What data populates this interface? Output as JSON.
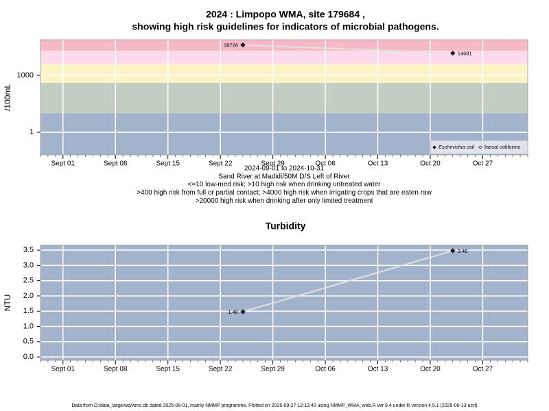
{
  "chart_data": [
    {
      "type": "line",
      "title": [
        "2024 : Limpopo WMA, site 179684 ,",
        "showing high risk guidelines for indicators of microbial pathogens."
      ],
      "ylabel": "/100mL",
      "log_scale": true,
      "x": [
        "2024-09-25",
        "2024-10-23"
      ],
      "xlim": [
        "2024-08-29",
        "2024-11-02"
      ],
      "xticks": [
        {
          "value": "2024-09-01",
          "label": "Sept 01"
        },
        {
          "value": "2024-09-08",
          "label": "Sept 08"
        },
        {
          "value": "2024-09-15",
          "label": "Sept 15"
        },
        {
          "value": "2024-09-22",
          "label": "Sept 22"
        },
        {
          "value": "2024-09-29",
          "label": "Sept 29"
        },
        {
          "value": "2024-10-06",
          "label": "Oct 06"
        },
        {
          "value": "2024-10-13",
          "label": "Oct 13"
        },
        {
          "value": "2024-10-20",
          "label": "Oct 20"
        },
        {
          "value": "2024-10-27",
          "label": "Oct 27"
        }
      ],
      "ylim": [
        0.065,
        75000
      ],
      "yticks": [
        1,
        1000
      ],
      "guidelines": [
        10,
        400,
        4000,
        20000
      ],
      "band_colors": [
        "#a2b3cb",
        "#c4cdc1",
        "#fcf4c6",
        "#fbdbea",
        "#f7b9c5"
      ],
      "line_color": "#e2e2e2",
      "grid": true,
      "legend": "lower right",
      "series": [
        {
          "name": "Escherichia coli",
          "color": "#222222",
          "values": [
            39726,
            14681
          ]
        },
        {
          "name": "faecal coliforms",
          "color": "#ffffff",
          "values": [
            null,
            null
          ]
        }
      ],
      "notes": [
        "2024-09-01 to 2024-10-31",
        "Sand River at Madidi/50M D/S Left of River",
        "<=10 low-med risk; >10 high risk when drinking untreated water",
        ">400 high risk from full or partial contact; >4000 high risk when irrigating crops that are eaten raw",
        ">20000 high risk when drinking after only limited treatment"
      ]
    },
    {
      "type": "line",
      "title": [
        "Turbidity"
      ],
      "ylabel": "NTU",
      "log_scale": false,
      "x": [
        "2024-09-25",
        "2024-10-23"
      ],
      "xlim": [
        "2024-08-29",
        "2024-11-02"
      ],
      "xticks": [
        {
          "value": "2024-09-01",
          "label": "Sept 01"
        },
        {
          "value": "2024-09-08",
          "label": "Sept 08"
        },
        {
          "value": "2024-09-15",
          "label": "Sept 15"
        },
        {
          "value": "2024-09-22",
          "label": "Sept 22"
        },
        {
          "value": "2024-09-29",
          "label": "Sept 29"
        },
        {
          "value": "2024-10-06",
          "label": "Oct 06"
        },
        {
          "value": "2024-10-13",
          "label": "Oct 13"
        },
        {
          "value": "2024-10-20",
          "label": "Oct 20"
        },
        {
          "value": "2024-10-27",
          "label": "Oct 27"
        }
      ],
      "ylim": [
        -0.11,
        3.66
      ],
      "yticks": [
        {
          "value": 0,
          "label": "0.0"
        },
        0.5,
        {
          "value": 1,
          "label": "1.0"
        },
        1.5,
        {
          "value": 2,
          "label": "2.0"
        },
        2.5,
        {
          "value": 3,
          "label": "3.0"
        },
        3.5
      ],
      "band_colors": [
        "#a2b3cb"
      ],
      "line_color": "#e2e2e2",
      "grid": true,
      "series": [
        {
          "name": "Turbidity",
          "color": "#222222",
          "values": [
            1.48,
            3.48
          ]
        }
      ]
    }
  ],
  "footer": "Data from D:/data_large/wq/wms.db dated 2025-08-01, mainly NMMP programme. Plotted on 2025-09-27 12:12:40 using NMMP_WMA_web.R ver 9.4 under R version 4.5.1 (2025-06-13 ucrt)"
}
